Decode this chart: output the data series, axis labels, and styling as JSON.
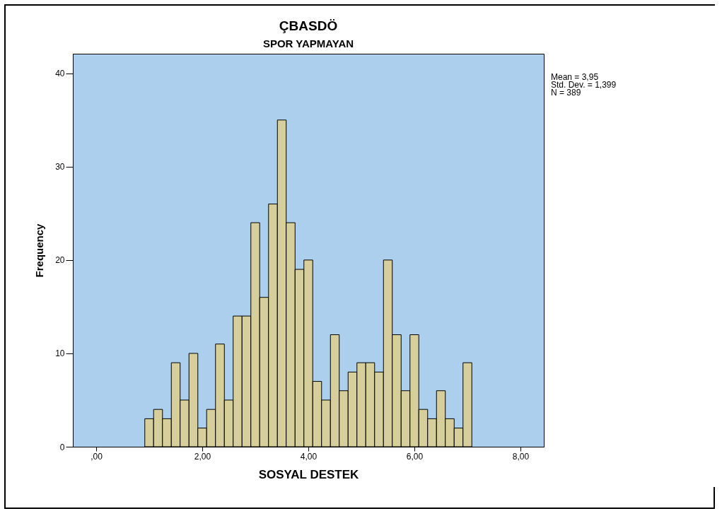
{
  "chart_data": {
    "type": "histogram",
    "title": "ÇBASDÖ",
    "subtitle": "SPOR YAPMAYAN",
    "xlabel": "SOSYAL DESTEK",
    "ylabel": "Frequency",
    "bins": [
      0.917,
      1.083,
      1.25,
      1.417,
      1.583,
      1.75,
      1.917,
      2.083,
      2.25,
      2.417,
      2.583,
      2.75,
      2.917,
      3.083,
      3.25,
      3.417,
      3.583,
      3.75,
      3.917,
      4.083,
      4.25,
      4.417,
      4.583,
      4.75,
      4.917,
      5.083,
      5.25,
      5.417,
      5.583,
      5.75,
      5.917,
      6.083,
      6.25,
      6.417,
      6.583,
      6.75,
      6.917,
      7.083
    ],
    "values": [
      3,
      4,
      3,
      9,
      5,
      10,
      2,
      4,
      11,
      5,
      14,
      14,
      24,
      16,
      26,
      35,
      24,
      19,
      20,
      7,
      5,
      12,
      6,
      8,
      9,
      9,
      8,
      20,
      12,
      6,
      12,
      4,
      3,
      6,
      3,
      2,
      9
    ],
    "color": "#d6cf9c",
    "xlim": [
      -0.44,
      8.44
    ],
    "ylim": [
      0,
      42.1
    ],
    "xticks": [
      {
        "value": 0,
        "label": ",00"
      },
      {
        "value": 2,
        "label": "2,00"
      },
      {
        "value": 4,
        "label": "4,00"
      },
      {
        "value": 6,
        "label": "6,00"
      },
      {
        "value": 8,
        "label": "8,00"
      }
    ],
    "yticks": [
      0,
      10,
      20,
      30,
      40
    ],
    "grid": false,
    "annotations": [
      "Mean = 3,95",
      "Std. Dev. = 1,399",
      "N = 389"
    ]
  }
}
